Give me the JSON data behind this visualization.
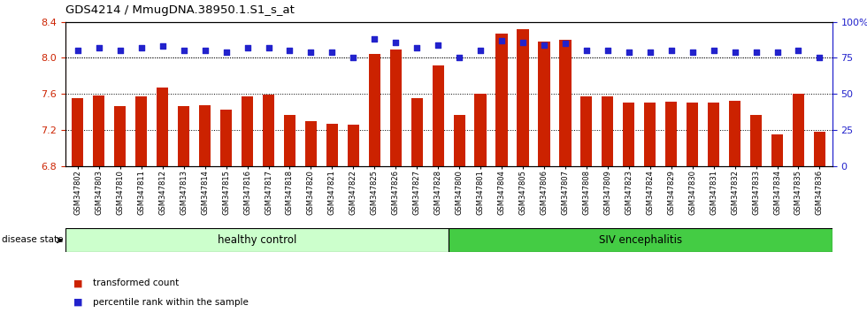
{
  "title": "GDS4214 / MmugDNA.38950.1.S1_s_at",
  "samples": [
    "GSM347802",
    "GSM347803",
    "GSM347810",
    "GSM347811",
    "GSM347812",
    "GSM347813",
    "GSM347814",
    "GSM347815",
    "GSM347816",
    "GSM347817",
    "GSM347818",
    "GSM347820",
    "GSM347821",
    "GSM347822",
    "GSM347825",
    "GSM347826",
    "GSM347827",
    "GSM347828",
    "GSM347800",
    "GSM347801",
    "GSM347804",
    "GSM347805",
    "GSM347806",
    "GSM347807",
    "GSM347808",
    "GSM347809",
    "GSM347823",
    "GSM347824",
    "GSM347829",
    "GSM347830",
    "GSM347831",
    "GSM347832",
    "GSM347833",
    "GSM347834",
    "GSM347835",
    "GSM347836"
  ],
  "transformed_count": [
    7.55,
    7.58,
    7.46,
    7.57,
    7.67,
    7.46,
    7.47,
    7.43,
    7.57,
    7.59,
    7.37,
    7.3,
    7.27,
    7.26,
    8.04,
    8.09,
    7.55,
    7.92,
    7.37,
    7.6,
    8.27,
    8.32,
    8.18,
    8.2,
    7.57,
    7.57,
    7.5,
    7.5,
    7.51,
    7.5,
    7.5,
    7.52,
    7.37,
    7.15,
    7.6,
    7.18
  ],
  "percentile_rank": [
    80,
    82,
    80,
    82,
    83,
    80,
    80,
    79,
    82,
    82,
    80,
    79,
    79,
    75,
    88,
    86,
    82,
    84,
    75,
    80,
    87,
    86,
    84,
    85,
    80,
    80,
    79,
    79,
    80,
    79,
    80,
    79,
    79,
    79,
    80,
    75
  ],
  "healthy_control_count": 18,
  "group_labels": [
    "healthy control",
    "SIV encephalitis"
  ],
  "bar_color": "#CC2200",
  "dot_color": "#2222CC",
  "ylim_left": [
    6.8,
    8.4
  ],
  "ylim_right": [
    0,
    100
  ],
  "yticks_left": [
    6.8,
    7.2,
    7.6,
    8.0,
    8.4
  ],
  "yticks_right": [
    0,
    25,
    50,
    75,
    100
  ],
  "ytick_labels_right": [
    "0",
    "25",
    "50",
    "75",
    "100%"
  ],
  "grid_values": [
    8.0,
    7.6,
    7.2
  ],
  "hc_color": "#CCFFCC",
  "siv_color": "#44CC44",
  "legend_items": [
    "transformed count",
    "percentile rank within the sample"
  ],
  "disease_state_label": "disease state"
}
